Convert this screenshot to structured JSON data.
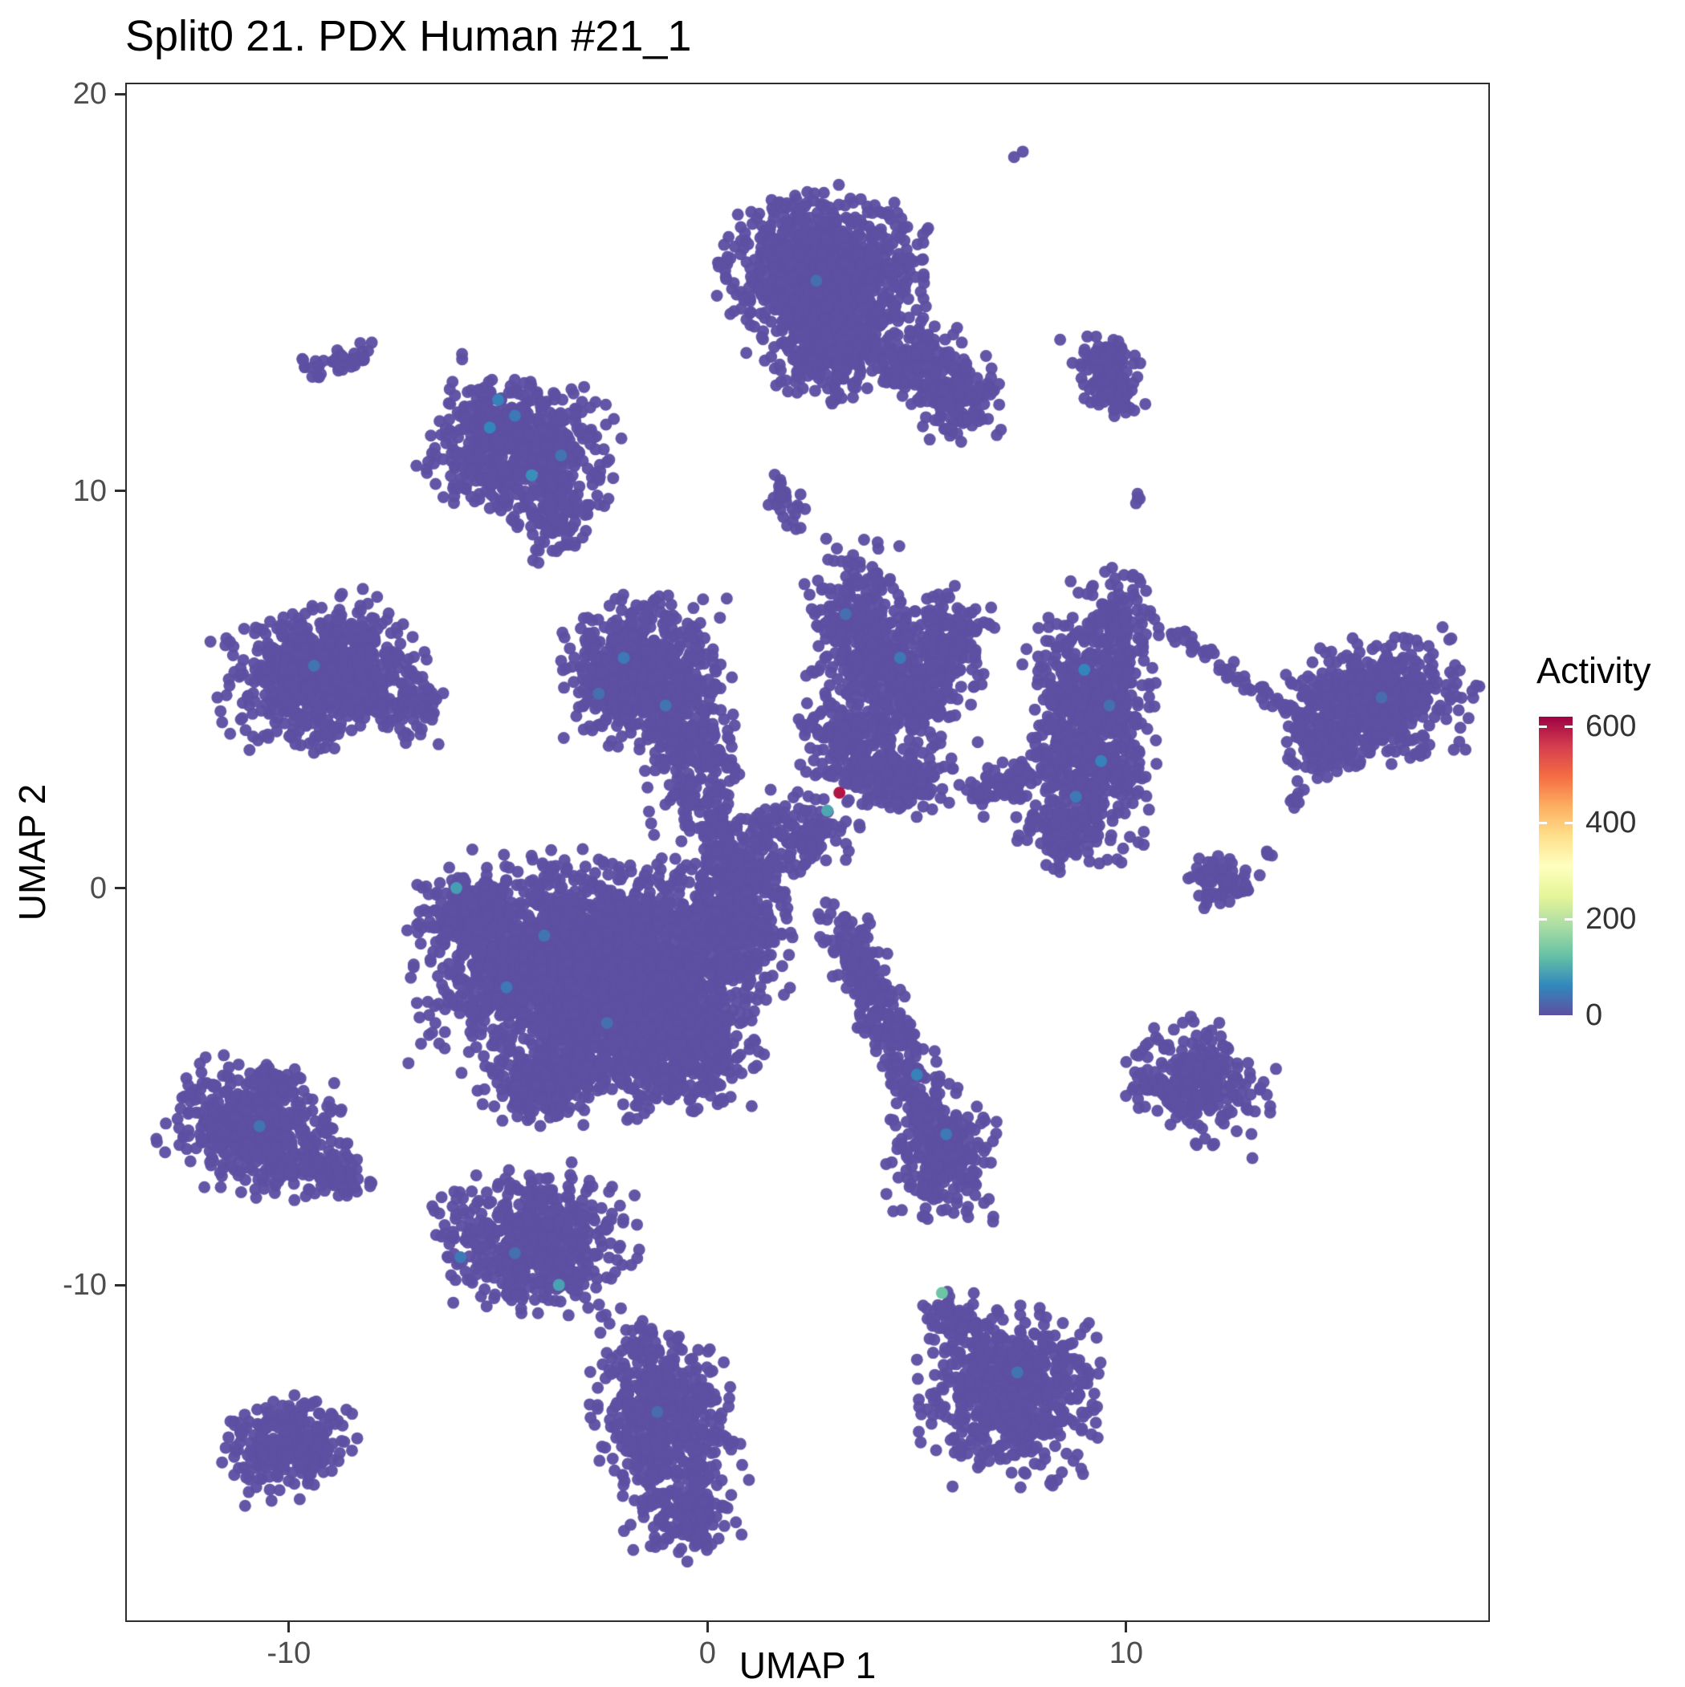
{
  "chart_data": {
    "type": "scatter",
    "title": "Split0 21. PDX Human #21_1",
    "xlabel": "UMAP 1",
    "ylabel": "UMAP 2",
    "xlim": [
      -13.87,
      18.65
    ],
    "ylim": [
      -18.45,
      20.25
    ],
    "xticks": [
      -10,
      0,
      10
    ],
    "yticks": [
      20,
      10,
      0,
      -10
    ],
    "grid": false,
    "legend": {
      "title": "Activity",
      "ticks": [
        600,
        400,
        200,
        0
      ],
      "min": 0,
      "max": 620,
      "position": "right"
    },
    "colormap": [
      "#5E4FA2",
      "#3288BD",
      "#66C2A5",
      "#ABDDA4",
      "#E6F598",
      "#FFFFBF",
      "#FEE08B",
      "#FDAE61",
      "#F46D43",
      "#D53E4F",
      "#9E0142"
    ],
    "colors": {
      "point_base": "#5E4FA2",
      "axis_text": "#4d4d4d",
      "title_text": "#000000",
      "panel_border": "#2d2d2d",
      "background": "#ffffff"
    },
    "point_radius_px": 7.5,
    "seed": 42,
    "clusters": [
      {
        "id": "lone-top-dot",
        "cx": 7.4,
        "cy": 18.5,
        "sdx": 0.06,
        "sdy": 0.06,
        "n": 2
      },
      {
        "id": "topcenter-main",
        "cx": 2.8,
        "cy": 15.6,
        "sdx": 1.05,
        "sdy": 0.85,
        "n": 900
      },
      {
        "id": "topcenter-low",
        "cx": 3.0,
        "cy": 13.6,
        "sdx": 0.7,
        "sdy": 0.6,
        "n": 300
      },
      {
        "id": "topcenter-bridge",
        "cx": 4.9,
        "cy": 13.3,
        "sdx": 0.5,
        "sdy": 0.45,
        "n": 130
      },
      {
        "id": "topcenter-right",
        "cx": 6.0,
        "cy": 12.4,
        "sdx": 0.45,
        "sdy": 0.5,
        "n": 170
      },
      {
        "id": "pair-upperleft",
        "cx": -8.75,
        "cy": 13.3,
        "sdx": 0.4,
        "sdy": 0.15,
        "rot": 12,
        "n": 45
      },
      {
        "id": "pair-upperleft-dot",
        "cx": -9.3,
        "cy": 12.9,
        "sdx": 0.07,
        "sdy": 0.07,
        "n": 3
      },
      {
        "id": "upperleft-main",
        "cx": -4.5,
        "cy": 11.1,
        "sdx": 1.0,
        "sdy": 0.8,
        "rot": -15,
        "n": 640
      },
      {
        "id": "upperleft-tail",
        "cx": -3.7,
        "cy": 9.4,
        "sdx": 0.38,
        "sdy": 0.6,
        "n": 95
      },
      {
        "id": "upperright-small",
        "cx": 9.5,
        "cy": 13.0,
        "sdx": 0.35,
        "sdy": 0.55,
        "rot": 18,
        "n": 130
      },
      {
        "id": "upperright-dot",
        "cx": 10.3,
        "cy": 9.9,
        "sdx": 0.1,
        "sdy": 0.1,
        "n": 4
      },
      {
        "id": "center-top-small",
        "cx": 1.82,
        "cy": 9.8,
        "sdx": 0.2,
        "sdy": 0.38,
        "rot": 20,
        "n": 28
      },
      {
        "id": "left-main",
        "cx": -9.2,
        "cy": 5.4,
        "sdx": 1.05,
        "sdy": 0.8,
        "rot": 8,
        "n": 700
      },
      {
        "id": "left-bump",
        "cx": -7.1,
        "cy": 4.6,
        "sdx": 0.35,
        "sdy": 0.4,
        "n": 70
      },
      {
        "id": "centerleft-main",
        "cx": -1.5,
        "cy": 5.4,
        "sdx": 0.85,
        "sdy": 0.8,
        "n": 650
      },
      {
        "id": "centerleft-tail",
        "cx": -0.4,
        "cy": 3.2,
        "sdx": 0.5,
        "sdy": 0.75,
        "n": 180
      },
      {
        "id": "centerleft-neck",
        "cx": 0.1,
        "cy": 1.5,
        "sdx": 0.35,
        "sdy": 0.5,
        "n": 90
      },
      {
        "id": "center-a",
        "cx": 3.6,
        "cy": 6.6,
        "sdx": 0.55,
        "sdy": 0.9,
        "n": 270
      },
      {
        "id": "center-b",
        "cx": 4.9,
        "cy": 5.2,
        "sdx": 0.7,
        "sdy": 0.85,
        "n": 330
      },
      {
        "id": "center-c",
        "cx": 5.9,
        "cy": 6.3,
        "sdx": 0.4,
        "sdy": 0.55,
        "n": 120
      },
      {
        "id": "center-d",
        "cx": 3.4,
        "cy": 3.6,
        "sdx": 0.55,
        "sdy": 0.6,
        "n": 190
      },
      {
        "id": "center-e",
        "cx": 4.7,
        "cy": 2.7,
        "sdx": 0.6,
        "sdy": 0.4,
        "n": 150
      },
      {
        "id": "center-neck",
        "cx": 2.2,
        "cy": 1.5,
        "sdx": 0.65,
        "sdy": 0.4,
        "rot": -15,
        "n": 120
      },
      {
        "id": "rightmid-main",
        "cx": 9.2,
        "cy": 4.2,
        "sdx": 0.7,
        "sdy": 1.55,
        "n": 700
      },
      {
        "id": "rightmid-top",
        "cx": 9.9,
        "cy": 6.9,
        "sdx": 0.33,
        "sdy": 0.4,
        "n": 80
      },
      {
        "id": "rightmid-bottom",
        "cx": 8.5,
        "cy": 1.5,
        "sdx": 0.45,
        "sdy": 0.5,
        "n": 110
      },
      {
        "id": "rightmid-bridge",
        "line": [
          6.3,
          2.2,
          8.3,
          3.3
        ],
        "sd": 0.25,
        "n": 90
      },
      {
        "id": "trail-right",
        "line": [
          11.0,
          6.5,
          14.3,
          4.2
        ],
        "sd": 0.12,
        "n": 60
      },
      {
        "id": "farright-main",
        "cx": 16.0,
        "cy": 4.7,
        "sdx": 1.0,
        "sdy": 0.7,
        "rot": 12,
        "n": 560
      },
      {
        "id": "farright-tip",
        "cx": 14.6,
        "cy": 3.6,
        "sdx": 0.45,
        "sdy": 0.4,
        "n": 80
      },
      {
        "id": "farright-dot",
        "cx": 14.0,
        "cy": 2.3,
        "sdx": 0.15,
        "sdy": 0.15,
        "n": 8
      },
      {
        "id": "right-dots",
        "cx": 13.5,
        "cy": 0.9,
        "sdx": 0.12,
        "sdy": 0.1,
        "n": 5
      },
      {
        "id": "right-small2",
        "cx": 12.2,
        "cy": 0.15,
        "sdx": 0.4,
        "sdy": 0.33,
        "n": 75
      },
      {
        "id": "mega-core",
        "cx": -2.8,
        "cy": -2.2,
        "sdx": 1.75,
        "sdy": 1.3,
        "n": 2300
      },
      {
        "id": "mega-low",
        "cx": -1.0,
        "cy": -4.0,
        "sdx": 0.95,
        "sdy": 0.75,
        "n": 500
      },
      {
        "id": "mega-right",
        "cx": 0.4,
        "cy": -1.0,
        "sdx": 0.7,
        "sdy": 0.8,
        "n": 360
      },
      {
        "id": "mega-left",
        "cx": -5.6,
        "cy": -0.6,
        "sdx": 0.55,
        "sdy": 0.5,
        "n": 190
      },
      {
        "id": "mega-bottom",
        "cx": -4.0,
        "cy": -5.0,
        "sdx": 0.6,
        "sdy": 0.45,
        "n": 200
      },
      {
        "id": "mega-neck",
        "cx": 1.0,
        "cy": 0.4,
        "sdx": 0.5,
        "sdy": 0.5,
        "n": 130
      },
      {
        "id": "comet-line",
        "line": [
          3.1,
          -0.6,
          5.3,
          -5.7
        ],
        "sd": 0.3,
        "n": 300
      },
      {
        "id": "comet-head",
        "cx": 5.6,
        "cy": -6.6,
        "sdx": 0.55,
        "sdy": 0.75,
        "n": 280
      },
      {
        "id": "right-low",
        "cx": 11.7,
        "cy": -4.9,
        "sdx": 0.75,
        "sdy": 0.65,
        "rot": -12,
        "n": 300
      },
      {
        "id": "left-low-main",
        "cx": -10.8,
        "cy": -6.1,
        "sdx": 0.95,
        "sdy": 0.7,
        "rot": -18,
        "n": 470
      },
      {
        "id": "left-low-arm",
        "cx": -9.0,
        "cy": -7.2,
        "sdx": 0.5,
        "sdy": 0.3,
        "rot": -22,
        "n": 85
      },
      {
        "id": "left-low-spike",
        "cx": -10.3,
        "cy": -4.9,
        "sdx": 0.28,
        "sdy": 0.22,
        "n": 40
      },
      {
        "id": "bottomleft-mid",
        "cx": -4.1,
        "cy": -8.9,
        "sdx": 1.0,
        "sdy": 0.8,
        "n": 580
      },
      {
        "id": "bl-trail1",
        "cx": -1.5,
        "cy": -11.1,
        "sdx": 0.1,
        "sdy": 0.1,
        "n": 5
      },
      {
        "id": "bl-trail2",
        "cx": -1.2,
        "cy": -11.7,
        "sdx": 0.09,
        "sdy": 0.09,
        "n": 4
      },
      {
        "id": "bottom-main",
        "cx": -1.0,
        "cy": -13.6,
        "sdx": 0.72,
        "sdy": 1.2,
        "rot": 8,
        "n": 580
      },
      {
        "id": "bottom-tip",
        "cx": -0.3,
        "cy": -15.9,
        "sdx": 0.38,
        "sdy": 0.45,
        "n": 90
      },
      {
        "id": "bottomleft-small",
        "cx": -10.0,
        "cy": -14.1,
        "sdx": 0.7,
        "sdy": 0.55,
        "rot": 15,
        "n": 280
      },
      {
        "id": "bottomright-main",
        "cx": 7.3,
        "cy": -12.8,
        "sdx": 0.95,
        "sdy": 0.95,
        "n": 620
      },
      {
        "id": "bottomright-tail",
        "cx": 6.0,
        "cy": -10.9,
        "sdx": 0.3,
        "sdy": 0.45,
        "rot": 25,
        "n": 60
      }
    ],
    "highlights": [
      {
        "x": 3.15,
        "y": 2.4,
        "v": 600
      },
      {
        "x": 2.86,
        "y": 1.95,
        "v": 95
      },
      {
        "x": 5.6,
        "y": -10.2,
        "v": 130
      },
      {
        "x": -3.55,
        "y": -10.0,
        "v": 90
      },
      {
        "x": -6.0,
        "y": 0.0,
        "v": 85
      },
      {
        "x": -5.2,
        "y": 11.6,
        "v": 60
      },
      {
        "x": -4.6,
        "y": 11.9,
        "v": 45
      },
      {
        "x": -4.2,
        "y": 10.4,
        "v": 70
      },
      {
        "x": -3.5,
        "y": 10.9,
        "v": 40
      },
      {
        "x": -5.0,
        "y": 12.3,
        "v": 55
      },
      {
        "x": -2.0,
        "y": 5.8,
        "v": 45
      },
      {
        "x": -1.0,
        "y": 4.6,
        "v": 40
      },
      {
        "x": -2.6,
        "y": 4.9,
        "v": 35
      },
      {
        "x": 9.0,
        "y": 5.5,
        "v": 60
      },
      {
        "x": 9.4,
        "y": 3.2,
        "v": 55
      },
      {
        "x": 8.8,
        "y": 2.3,
        "v": 45
      },
      {
        "x": 9.6,
        "y": 4.6,
        "v": 35
      },
      {
        "x": 4.6,
        "y": 5.8,
        "v": 45
      },
      {
        "x": 3.3,
        "y": 6.9,
        "v": 35
      },
      {
        "x": -4.8,
        "y": -2.5,
        "v": 45
      },
      {
        "x": -2.4,
        "y": -3.4,
        "v": 35
      },
      {
        "x": -3.9,
        "y": -1.2,
        "v": 40
      },
      {
        "x": -5.9,
        "y": -9.3,
        "v": 45
      },
      {
        "x": 5.0,
        "y": -4.7,
        "v": 55
      },
      {
        "x": 5.7,
        "y": -6.2,
        "v": 45
      },
      {
        "x": -10.7,
        "y": -6.0,
        "v": 40
      },
      {
        "x": 7.4,
        "y": -12.2,
        "v": 40
      },
      {
        "x": 16.1,
        "y": 4.8,
        "v": 30
      },
      {
        "x": 2.6,
        "y": 15.3,
        "v": 35
      },
      {
        "x": -9.4,
        "y": 5.6,
        "v": 40
      },
      {
        "x": -4.6,
        "y": -9.2,
        "v": 35
      },
      {
        "x": -1.2,
        "y": -13.2,
        "v": 30
      }
    ]
  }
}
